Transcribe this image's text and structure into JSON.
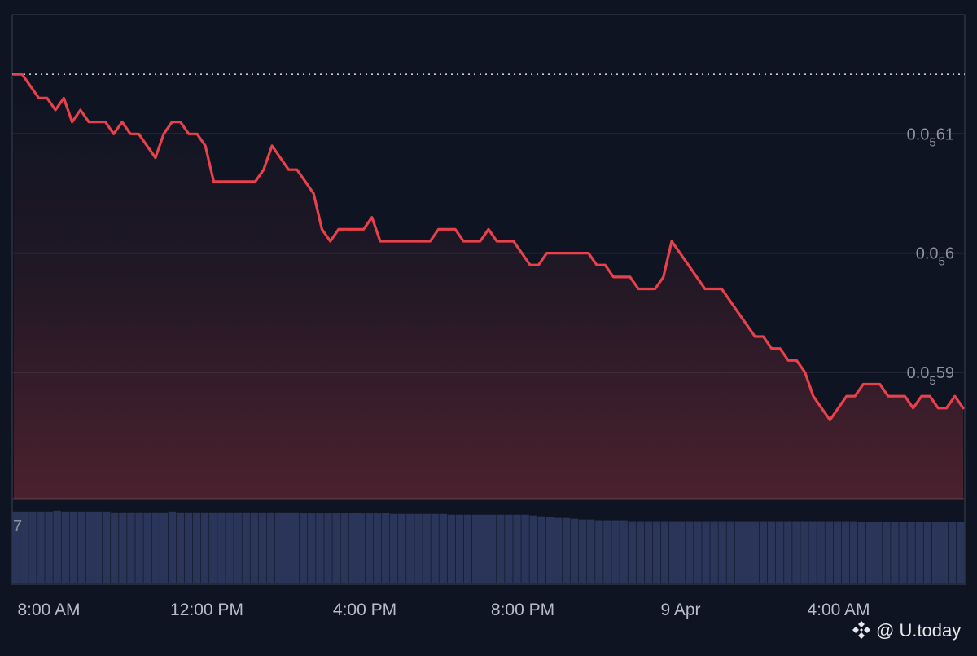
{
  "theme": {
    "background": "#0e1422",
    "line_color": "#e8414b",
    "volume_color": "#2a3559",
    "grid_color": "#2c3444"
  },
  "chart_data": {
    "type": "line",
    "x_tick_labels": [
      "8:00 AM",
      "12:00 PM",
      "4:00 PM",
      "8:00 PM",
      "9 Apr",
      "4:00 AM"
    ],
    "y_ticks": [
      {
        "prefix": "0.0",
        "sub": "5",
        "suffix": "61",
        "value": 6.1e-06
      },
      {
        "prefix": "0.0",
        "sub": "5",
        "suffix": "6",
        "value": 6e-06
      },
      {
        "prefix": "0.0",
        "sub": "5",
        "suffix": "59",
        "value": 5.9e-06
      }
    ],
    "ylim": [
      5.794e-06,
      6.2e-06
    ],
    "reference_line": {
      "value": 6.15e-06,
      "style": "dotted"
    },
    "grid": true,
    "series": [
      {
        "values": [
          6.15e-06,
          6.15e-06,
          6.14e-06,
          6.13e-06,
          6.13e-06,
          6.12e-06,
          6.13e-06,
          6.11e-06,
          6.12e-06,
          6.11e-06,
          6.11e-06,
          6.11e-06,
          6.1e-06,
          6.11e-06,
          6.1e-06,
          6.1e-06,
          6.09e-06,
          6.08e-06,
          6.1e-06,
          6.11e-06,
          6.11e-06,
          6.1e-06,
          6.1e-06,
          6.09e-06,
          6.06e-06,
          6.06e-06,
          6.06e-06,
          6.06e-06,
          6.06e-06,
          6.06e-06,
          6.07e-06,
          6.09e-06,
          6.08e-06,
          6.07e-06,
          6.07e-06,
          6.06e-06,
          6.05e-06,
          6.02e-06,
          6.01e-06,
          6.02e-06,
          6.02e-06,
          6.02e-06,
          6.02e-06,
          6.03e-06,
          6.01e-06,
          6.01e-06,
          6.01e-06,
          6.01e-06,
          6.01e-06,
          6.01e-06,
          6.01e-06,
          6.02e-06,
          6.02e-06,
          6.02e-06,
          6.01e-06,
          6.01e-06,
          6.01e-06,
          6.02e-06,
          6.01e-06,
          6.01e-06,
          6.01e-06,
          6e-06,
          5.99e-06,
          5.99e-06,
          6e-06,
          6e-06,
          6e-06,
          6e-06,
          6e-06,
          6e-06,
          5.99e-06,
          5.99e-06,
          5.98e-06,
          5.98e-06,
          5.98e-06,
          5.97e-06,
          5.97e-06,
          5.97e-06,
          5.98e-06,
          6.01e-06,
          6e-06,
          5.99e-06,
          5.98e-06,
          5.97e-06,
          5.97e-06,
          5.97e-06,
          5.96e-06,
          5.95e-06,
          5.94e-06,
          5.93e-06,
          5.93e-06,
          5.92e-06,
          5.92e-06,
          5.91e-06,
          5.91e-06,
          5.9e-06,
          5.88e-06,
          5.87e-06,
          5.86e-06,
          5.87e-06,
          5.88e-06,
          5.88e-06,
          5.89e-06,
          5.89e-06,
          5.89e-06,
          5.88e-06,
          5.88e-06,
          5.88e-06,
          5.87e-06,
          5.88e-06,
          5.88e-06,
          5.87e-06,
          5.87e-06,
          5.88e-06,
          5.87e-06
        ]
      }
    ],
    "volume": {
      "label": "7",
      "values": [
        0.9,
        0.9,
        0.9,
        0.9,
        0.9,
        0.91,
        0.9,
        0.9,
        0.9,
        0.9,
        0.9,
        0.9,
        0.89,
        0.89,
        0.89,
        0.89,
        0.89,
        0.89,
        0.89,
        0.9,
        0.89,
        0.89,
        0.89,
        0.89,
        0.89,
        0.89,
        0.89,
        0.89,
        0.89,
        0.89,
        0.89,
        0.89,
        0.89,
        0.89,
        0.89,
        0.88,
        0.88,
        0.88,
        0.88,
        0.88,
        0.88,
        0.88,
        0.88,
        0.88,
        0.88,
        0.88,
        0.87,
        0.87,
        0.87,
        0.87,
        0.87,
        0.87,
        0.87,
        0.86,
        0.86,
        0.86,
        0.86,
        0.86,
        0.86,
        0.86,
        0.86,
        0.86,
        0.86,
        0.85,
        0.84,
        0.83,
        0.82,
        0.82,
        0.81,
        0.8,
        0.8,
        0.79,
        0.79,
        0.79,
        0.79,
        0.78,
        0.78,
        0.78,
        0.78,
        0.78,
        0.78,
        0.78,
        0.78,
        0.78,
        0.78,
        0.78,
        0.78,
        0.78,
        0.78,
        0.78,
        0.78,
        0.78,
        0.78,
        0.78,
        0.78,
        0.78,
        0.78,
        0.78,
        0.78,
        0.78,
        0.78,
        0.78,
        0.78,
        0.77,
        0.77,
        0.77,
        0.77,
        0.77,
        0.77,
        0.77,
        0.77,
        0.77,
        0.77,
        0.77,
        0.77,
        0.77
      ]
    }
  },
  "watermark": {
    "text": "@ U.today",
    "icon": "binance-diamond-icon"
  }
}
